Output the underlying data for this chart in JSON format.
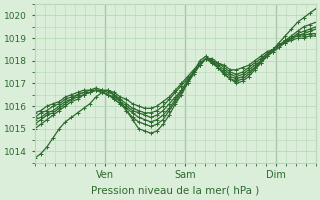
{
  "bg_color": "#daeeda",
  "grid_color": "#b8d8b8",
  "line_color": "#2d6a2d",
  "marker": "+",
  "markersize": 3,
  "linewidth": 0.9,
  "xlabel": "Pression niveau de la mer( hPa )",
  "ylim": [
    1013.5,
    1020.5
  ],
  "yticks": [
    1014,
    1015,
    1016,
    1017,
    1018,
    1019,
    1020
  ],
  "xlim": [
    0,
    84
  ],
  "xtick_positions": [
    21,
    45,
    72
  ],
  "xtick_labels": [
    "Ven",
    "Sam",
    "Dim"
  ],
  "vline_color": "#4a7a4a",
  "series": [
    [
      1013.7,
      1013.9,
      1014.2,
      1014.6,
      1015.0,
      1015.3,
      1015.5,
      1015.7,
      1015.9,
      1016.1,
      1016.4,
      1016.6,
      1016.7,
      1016.5,
      1016.2,
      1015.8,
      1015.4,
      1015.0,
      1014.9,
      1014.8,
      1014.9,
      1015.2,
      1015.6,
      1016.1,
      1016.5,
      1017.0,
      1017.5,
      1018.0,
      1018.2,
      1018.0,
      1017.7,
      1017.4,
      1017.2,
      1017.0,
      1017.1,
      1017.3,
      1017.6,
      1017.9,
      1018.2,
      1018.5,
      1018.8,
      1019.1,
      1019.4,
      1019.7,
      1019.9,
      1020.1,
      1020.3
    ],
    [
      1015.0,
      1015.2,
      1015.4,
      1015.6,
      1015.8,
      1016.0,
      1016.2,
      1016.3,
      1016.5,
      1016.6,
      1016.7,
      1016.6,
      1016.5,
      1016.3,
      1016.1,
      1015.8,
      1015.5,
      1015.3,
      1015.2,
      1015.1,
      1015.2,
      1015.4,
      1015.8,
      1016.2,
      1016.6,
      1017.0,
      1017.4,
      1017.8,
      1018.1,
      1017.9,
      1017.7,
      1017.4,
      1017.2,
      1017.1,
      1017.2,
      1017.4,
      1017.7,
      1017.9,
      1018.2,
      1018.4,
      1018.6,
      1018.9,
      1019.1,
      1019.3,
      1019.5,
      1019.6,
      1019.7
    ],
    [
      1015.2,
      1015.4,
      1015.6,
      1015.7,
      1015.9,
      1016.1,
      1016.3,
      1016.4,
      1016.5,
      1016.6,
      1016.7,
      1016.6,
      1016.5,
      1016.3,
      1016.1,
      1015.9,
      1015.7,
      1015.5,
      1015.4,
      1015.3,
      1015.4,
      1015.6,
      1015.9,
      1016.3,
      1016.7,
      1017.1,
      1017.5,
      1017.8,
      1018.1,
      1017.9,
      1017.7,
      1017.5,
      1017.3,
      1017.2,
      1017.3,
      1017.5,
      1017.7,
      1018.0,
      1018.2,
      1018.4,
      1018.6,
      1018.8,
      1019.0,
      1019.2,
      1019.3,
      1019.4,
      1019.5
    ],
    [
      1015.4,
      1015.5,
      1015.7,
      1015.8,
      1016.0,
      1016.2,
      1016.3,
      1016.5,
      1016.6,
      1016.6,
      1016.7,
      1016.6,
      1016.5,
      1016.4,
      1016.2,
      1016.0,
      1015.8,
      1015.7,
      1015.6,
      1015.5,
      1015.6,
      1015.8,
      1016.1,
      1016.4,
      1016.7,
      1017.1,
      1017.5,
      1017.8,
      1018.1,
      1018.0,
      1017.8,
      1017.6,
      1017.4,
      1017.3,
      1017.4,
      1017.6,
      1017.8,
      1018.0,
      1018.3,
      1018.5,
      1018.7,
      1018.9,
      1019.0,
      1019.1,
      1019.2,
      1019.3,
      1019.4
    ],
    [
      1015.5,
      1015.7,
      1015.8,
      1016.0,
      1016.1,
      1016.3,
      1016.4,
      1016.5,
      1016.6,
      1016.7,
      1016.7,
      1016.7,
      1016.6,
      1016.5,
      1016.3,
      1016.1,
      1015.9,
      1015.8,
      1015.7,
      1015.7,
      1015.8,
      1016.0,
      1016.3,
      1016.6,
      1016.9,
      1017.2,
      1017.5,
      1017.8,
      1018.1,
      1018.0,
      1017.9,
      1017.7,
      1017.5,
      1017.4,
      1017.5,
      1017.7,
      1017.9,
      1018.1,
      1018.3,
      1018.5,
      1018.7,
      1018.8,
      1019.0,
      1019.1,
      1019.1,
      1019.2,
      1019.2
    ],
    [
      1015.7,
      1015.8,
      1016.0,
      1016.1,
      1016.2,
      1016.4,
      1016.5,
      1016.6,
      1016.7,
      1016.7,
      1016.8,
      1016.7,
      1016.7,
      1016.6,
      1016.4,
      1016.3,
      1016.1,
      1016.0,
      1015.9,
      1015.9,
      1016.0,
      1016.2,
      1016.4,
      1016.7,
      1017.0,
      1017.3,
      1017.6,
      1017.9,
      1018.1,
      1018.1,
      1017.9,
      1017.8,
      1017.6,
      1017.6,
      1017.7,
      1017.8,
      1018.0,
      1018.2,
      1018.4,
      1018.5,
      1018.7,
      1018.8,
      1018.9,
      1019.0,
      1019.0,
      1019.1,
      1019.1
    ]
  ]
}
